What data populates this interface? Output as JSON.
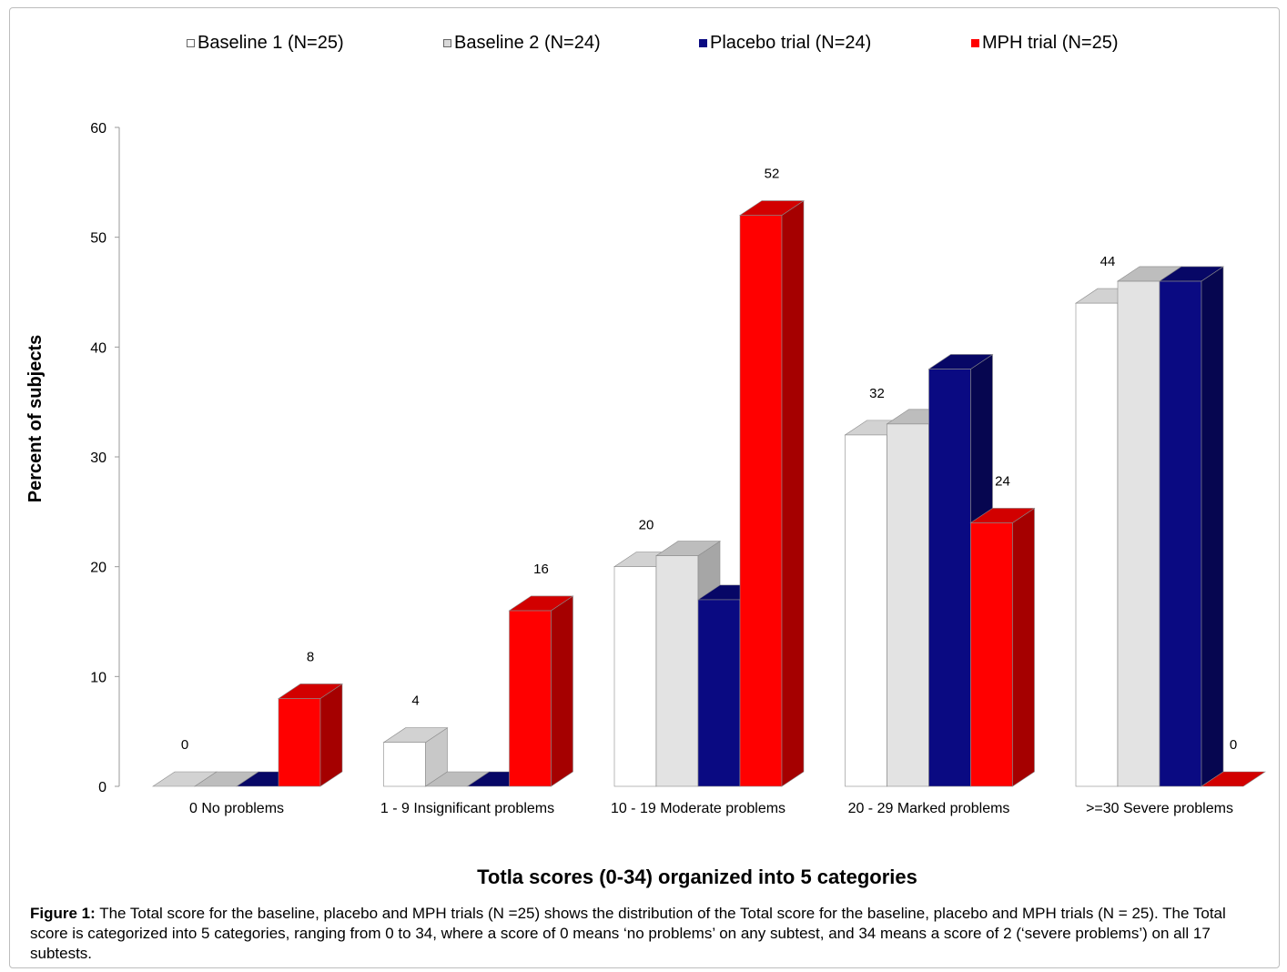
{
  "chart_data": {
    "type": "bar",
    "categories": [
      "0 No problems",
      "1 - 9 Insignificant problems",
      "10 - 19 Moderate problems",
      "20 - 29 Marked problems",
      ">=30 Severe problems"
    ],
    "series": [
      {
        "name": "Baseline 1 (N=25)",
        "values": [
          0,
          4,
          20,
          32,
          44
        ],
        "color": "#ffffff",
        "side_color": "#c8c8c8",
        "top_color": "#d2d2d2"
      },
      {
        "name": "Baseline 2 (N=24)",
        "values": [
          0,
          0,
          21,
          33,
          46
        ],
        "color": "#e3e3e3",
        "side_color": "#a6a6a6",
        "top_color": "#bdbdbd"
      },
      {
        "name": "Placebo trial (N=24)",
        "values": [
          0,
          0,
          17,
          38,
          46
        ],
        "color": "#0a0a82",
        "side_color": "#060650",
        "top_color": "#070766"
      },
      {
        "name": "MPH trial (N=25)",
        "values": [
          8,
          16,
          52,
          24,
          0
        ],
        "color": "#ff0000",
        "side_color": "#a50000",
        "top_color": "#d20000"
      }
    ],
    "data_labels": [
      {
        "category": 0,
        "text": "0"
      },
      {
        "category": 0,
        "text": "8"
      },
      {
        "category": 1,
        "text": "4"
      },
      {
        "category": 1,
        "text": "16"
      },
      {
        "category": 2,
        "text": "20"
      },
      {
        "category": 2,
        "text": "52"
      },
      {
        "category": 3,
        "text": "32"
      },
      {
        "category": 3,
        "text": "24"
      },
      {
        "category": 4,
        "text": "44"
      },
      {
        "category": 4,
        "text": "0"
      }
    ],
    "xlabel": "Totla scores (0-34) organized into 5 categories",
    "ylabel": "Percent of subjects",
    "ylim": [
      0,
      60
    ],
    "yticks": [
      "0",
      "10",
      "20",
      "30",
      "40",
      "50",
      "60"
    ],
    "grid": false,
    "legend_position": "top"
  },
  "caption": {
    "label": "Figure 1:",
    "text": " The Total score for the baseline, placebo and MPH trials (N =25) shows the distribution of the Total score for the baseline, placebo and MPH trials (N = 25). The Total score is categorized into 5 categories, ranging from 0 to 34, where a score of 0 means ‘no problems’ on any subtest, and 34 means a score of 2 (‘severe problems’) on all 17 subtests."
  }
}
